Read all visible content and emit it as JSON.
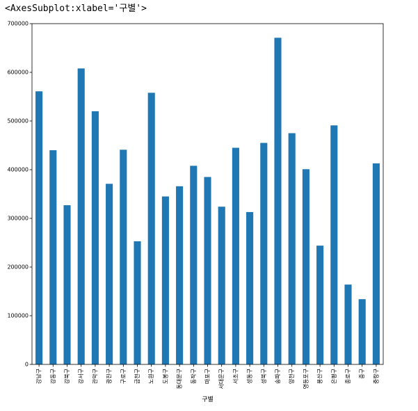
{
  "output_repr": "<AxesSubplot:xlabel='구별'>",
  "chart_data": {
    "type": "bar",
    "xlabel": "구별",
    "ylabel": "",
    "ylim": [
      0,
      700000
    ],
    "yticks": [
      0,
      100000,
      200000,
      300000,
      400000,
      500000,
      600000,
      700000
    ],
    "ytick_labels": [
      "0",
      "100000",
      "200000",
      "300000",
      "400000",
      "500000",
      "600000",
      "700000"
    ],
    "bar_color": "#1f77b4",
    "categories": [
      "강남구",
      "강동구",
      "강북구",
      "강서구",
      "관악구",
      "광진구",
      "구로구",
      "금천구",
      "노원구",
      "도봉구",
      "동대문구",
      "동작구",
      "마포구",
      "서대문구",
      "서초구",
      "성동구",
      "성북구",
      "송파구",
      "양천구",
      "영등포구",
      "용산구",
      "은평구",
      "종로구",
      "중구",
      "중랑구"
    ],
    "values": [
      561000,
      440000,
      327000,
      608000,
      520000,
      371000,
      441000,
      253000,
      558000,
      345000,
      366000,
      408000,
      385000,
      324000,
      445000,
      313000,
      455000,
      671000,
      475000,
      401000,
      244000,
      491000,
      164000,
      134000,
      413000
    ]
  }
}
